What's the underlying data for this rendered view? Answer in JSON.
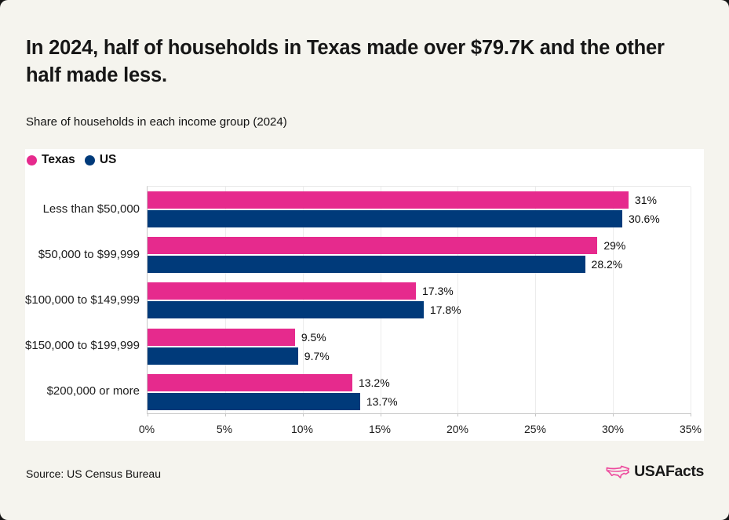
{
  "header": {
    "title": "In 2024, half of households in Texas made over $79.7K and the other half made less."
  },
  "chart": {
    "subtitle": "Share of households in each income group (2024)"
  },
  "chart_data": {
    "type": "bar",
    "orientation": "horizontal",
    "title": "Share of households in each income group (2024)",
    "categories": [
      "Less than $50,000",
      "$50,000 to $99,999",
      "$100,000 to $149,999",
      "$150,000 to $199,999",
      "$200,000 or more"
    ],
    "series": [
      {
        "name": "Texas",
        "color": "#e62a8d",
        "values": [
          31,
          29,
          17.3,
          9.5,
          13.2
        ],
        "value_labels": [
          "31%",
          "29%",
          "17.3%",
          "9.5%",
          "13.2%"
        ]
      },
      {
        "name": "US",
        "color": "#003a7a",
        "values": [
          30.6,
          28.2,
          17.8,
          9.7,
          13.7
        ],
        "value_labels": [
          "30.6%",
          "28.2%",
          "17.8%",
          "9.7%",
          "13.7%"
        ]
      }
    ],
    "xlim": [
      0,
      35
    ],
    "x_tick_labels": [
      "0%",
      "5%",
      "10%",
      "15%",
      "20%",
      "25%",
      "30%",
      "35%"
    ],
    "grid": true,
    "legend_position": "top-left"
  },
  "footer": {
    "source": "Source: US Census Bureau",
    "logo_text": "USAFacts"
  },
  "colors": {
    "texas_pink": "#e62a8d",
    "us_navy": "#003a7a",
    "background": "#f5f4ee",
    "card": "#ffffff"
  }
}
